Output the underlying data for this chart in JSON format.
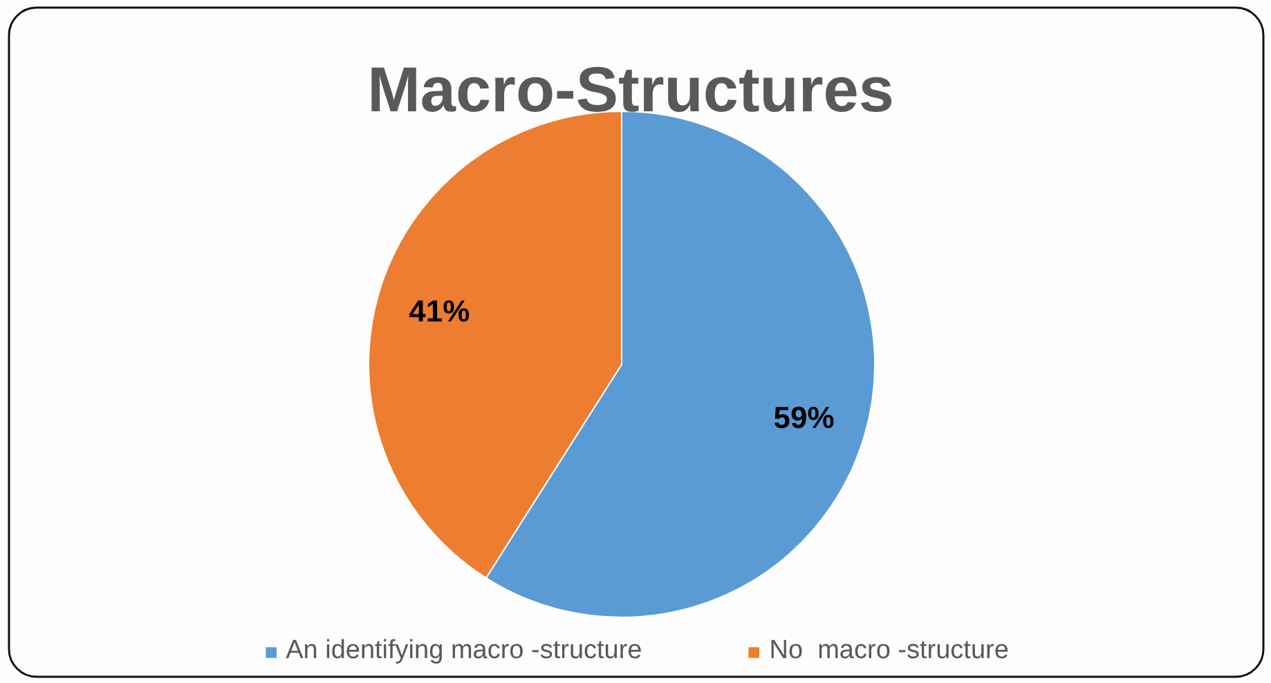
{
  "chart_data": {
    "type": "pie",
    "title": "Macro-Structures",
    "categories": [
      "An identifying macro -structure",
      "No  macro -structure"
    ],
    "values": [
      59,
      41
    ],
    "colors": [
      "#5b9bd5",
      "#ed7d31"
    ],
    "value_labels": [
      "59%",
      "41%"
    ],
    "legend": "bottom"
  }
}
